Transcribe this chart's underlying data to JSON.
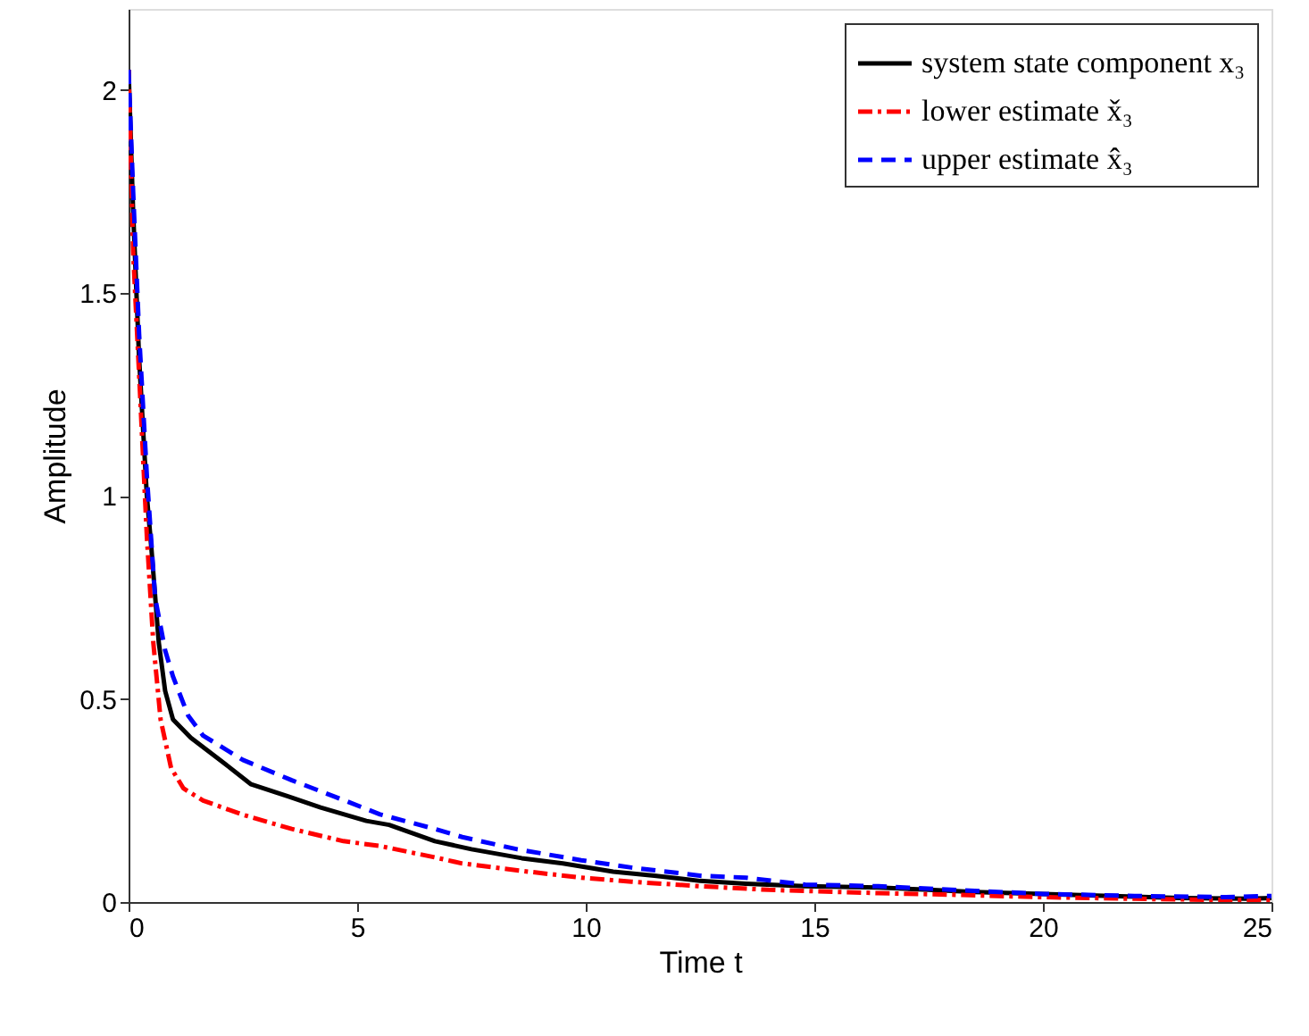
{
  "chart_data": {
    "type": "line",
    "xlabel": "Time t",
    "ylabel": "Amplitude",
    "xlim": [
      0,
      25
    ],
    "xticks": [
      0,
      5,
      10,
      15,
      20,
      25
    ],
    "ylim": [
      0,
      2.2
    ],
    "yticks": [
      0,
      0.5,
      1,
      1.5,
      2
    ],
    "grid": false,
    "legend": "top right",
    "marker": "none",
    "series": [
      {
        "name": "system state component x₃",
        "color": "#000000",
        "line_style": "solid",
        "x": [
          0,
          0.1,
          0.23,
          0.4,
          0.5,
          0.66,
          0.8,
          0.97,
          1.36,
          2,
          2.68,
          3.5,
          4.2,
          5.2,
          5.7,
          6.7,
          7.5,
          8.6,
          9.5,
          10.6,
          11.5,
          12.5,
          13.5,
          14.8,
          16.4,
          17.5,
          18.5,
          20,
          21.5,
          23,
          24.5,
          25
        ],
        "values": [
          2.05,
          1.7,
          1.34,
          1.0,
          0.87,
          0.64,
          0.52,
          0.45,
          0.405,
          0.35,
          0.29,
          0.26,
          0.233,
          0.2,
          0.19,
          0.15,
          0.13,
          0.108,
          0.095,
          0.075,
          0.065,
          0.052,
          0.045,
          0.039,
          0.036,
          0.03,
          0.025,
          0.02,
          0.015,
          0.01,
          0.008,
          0.01
        ]
      },
      {
        "name": "lower estimate x̌₃",
        "color": "#ff0000",
        "line_style": "dashdot",
        "x": [
          0,
          0.1,
          0.23,
          0.4,
          0.54,
          0.7,
          0.93,
          1.2,
          1.63,
          2.5,
          3.57,
          4.7,
          5.5,
          6.7,
          7.3,
          8.5,
          9.9,
          11,
          12.5,
          14,
          16.4,
          18,
          20,
          22,
          24,
          25
        ],
        "values": [
          2.05,
          1.6,
          1.3,
          0.9,
          0.64,
          0.45,
          0.33,
          0.28,
          0.25,
          0.215,
          0.18,
          0.15,
          0.138,
          0.11,
          0.095,
          0.078,
          0.06,
          0.05,
          0.039,
          0.03,
          0.022,
          0.018,
          0.012,
          0.008,
          0.005,
          0.005
        ]
      },
      {
        "name": "upper estimate x̂₃",
        "color": "#0000ff",
        "line_style": "dashed",
        "x": [
          0,
          0.1,
          0.23,
          0.4,
          0.58,
          0.8,
          0.97,
          1.3,
          1.63,
          2.5,
          3.57,
          4.5,
          5.5,
          6.7,
          7.3,
          8.5,
          9.9,
          11,
          12.5,
          13.5,
          14.8,
          16.4,
          18,
          20,
          22,
          24,
          25
        ],
        "values": [
          2.05,
          1.75,
          1.4,
          1.05,
          0.75,
          0.62,
          0.556,
          0.46,
          0.41,
          0.35,
          0.3,
          0.26,
          0.216,
          0.18,
          0.16,
          0.13,
          0.103,
          0.085,
          0.065,
          0.06,
          0.043,
          0.039,
          0.03,
          0.02,
          0.015,
          0.012,
          0.015
        ]
      }
    ]
  }
}
